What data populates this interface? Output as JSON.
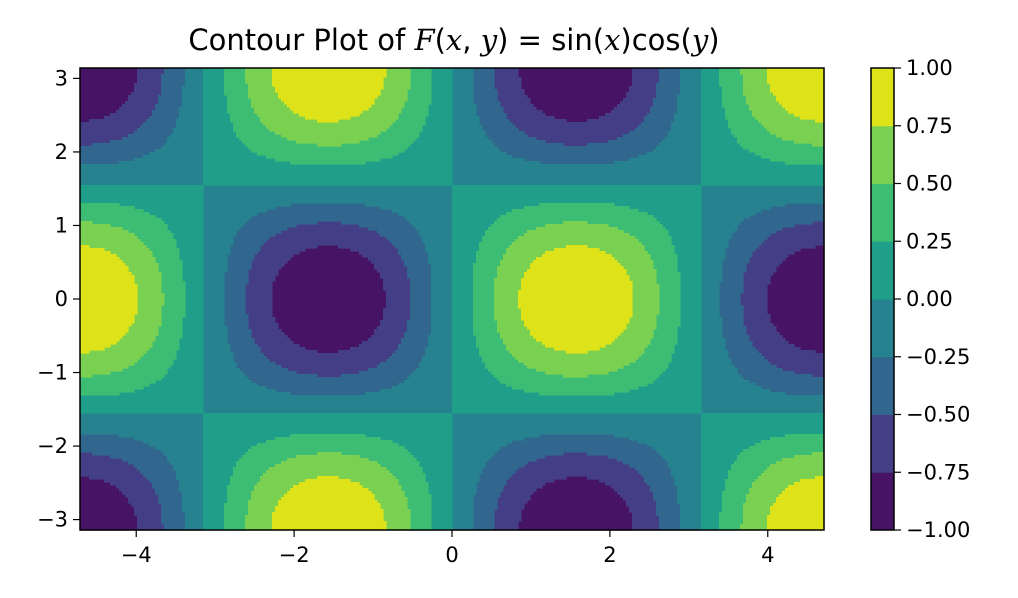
{
  "chart_data": {
    "type": "heatmap",
    "subtype": "filled-contour",
    "title": {
      "prefix": "Contour Plot of ",
      "fname": "F",
      "args_open": "(",
      "arg_x": "x",
      "comma": ", ",
      "arg_y": "y",
      "args_close": ")",
      "equals": " = ",
      "rhs_sin": "sin(",
      "rhs_x": "x",
      "rhs_cos": ")cos(",
      "rhs_y": "y",
      "rhs_close": ")"
    },
    "function": "sin(x)*cos(y)",
    "xlim": [
      -4.712389,
      4.712389
    ],
    "ylim": [
      -3.141593,
      3.141593
    ],
    "xticks": [
      -4,
      -2,
      0,
      2,
      4
    ],
    "xtick_labels": [
      "−4",
      "−2",
      "0",
      "2",
      "4"
    ],
    "yticks": [
      -3,
      -2,
      -1,
      0,
      1,
      2,
      3
    ],
    "ytick_labels": [
      "−3",
      "−2",
      "−1",
      "0",
      "1",
      "2",
      "3"
    ],
    "levels": [
      -1.0,
      -0.75,
      -0.5,
      -0.25,
      0.0,
      0.25,
      0.5,
      0.75,
      1.0
    ],
    "colorbar_tick_labels": [
      "−1.00",
      "−0.75",
      "−0.50",
      "−0.25",
      "0.00",
      "0.25",
      "0.50",
      "0.75",
      "1.00"
    ],
    "level_colors": [
      "#471365",
      "#433e85",
      "#31668e",
      "#26828e",
      "#1f9e89",
      "#3dbc74",
      "#7ad151",
      "#dde318"
    ],
    "colormap": "viridis",
    "grid": false,
    "colorbar_position": "right"
  }
}
